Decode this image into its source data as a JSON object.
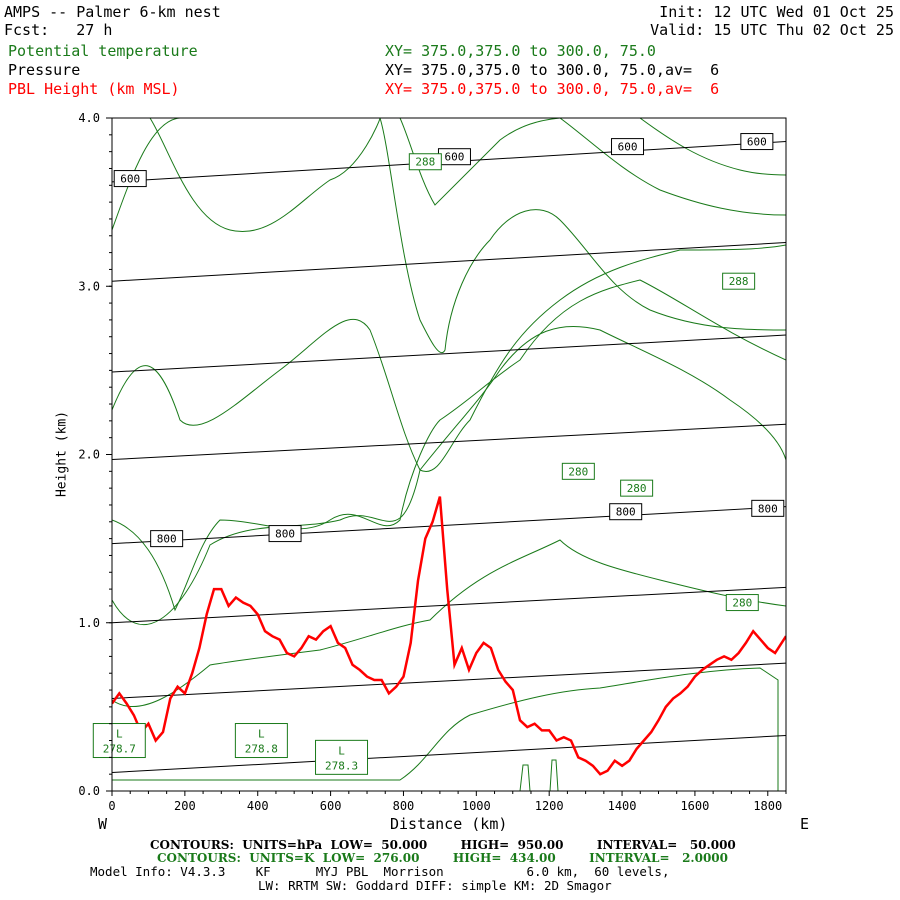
{
  "header": {
    "title": "AMPS -- Palmer 6-km nest",
    "fcst": "Fcst:   27 h",
    "init": "Init: 12 UTC Wed 01 Oct 25",
    "valid": "Valid: 15 UTC Thu 02 Oct 25",
    "field1": "Potential temperature",
    "field1_xy": "XY= 375.0,375.0 to 300.0, 75.0",
    "field2": "Pressure",
    "field2_xy": "XY= 375.0,375.0 to 300.0, 75.0,av=  6",
    "field3": "PBL Height (km MSL)",
    "field3_xy": "XY= 375.0,375.0 to 300.0, 75.0,av=  6"
  },
  "colors": {
    "theta": "#1a7a1a",
    "pressure": "#000000",
    "pbl": "#ff0000"
  },
  "footer": {
    "line1": "CONTOURS:  UNITS=hPa  LOW=  50.000        HIGH=  950.00        INTERVAL=   50.000",
    "line2": "CONTOURS:  UNITS=K  LOW=  276.00        HIGH=  434.00        INTERVAL=   2.0000",
    "line3": "Model Info: V4.3.3    KF      MYJ PBL  Morrison           6.0 km,  60 levels,",
    "line4": "LW: RRTM SW: Goddard DIFF: simple KM: 2D Smagor"
  },
  "chart_data": {
    "type": "line",
    "title": "PBL Height (km MSL)",
    "xlabel": "Distance (km)",
    "ylabel": "Height (km)",
    "xlim": [
      0,
      1850
    ],
    "ylim": [
      0,
      4.0
    ],
    "x_ticks": [
      0,
      200,
      400,
      600,
      800,
      1000,
      1200,
      1400,
      1600,
      1800
    ],
    "y_ticks": [
      "0.0",
      "1.0",
      "2.0",
      "3.0",
      "4.0"
    ],
    "x_end_labels": {
      "left": "W",
      "right": "E"
    },
    "series": [
      {
        "name": "PBL Height (km MSL)",
        "x": [
          0,
          20,
          40,
          60,
          80,
          100,
          120,
          140,
          160,
          180,
          200,
          220,
          240,
          260,
          280,
          300,
          320,
          340,
          360,
          380,
          400,
          420,
          440,
          460,
          480,
          500,
          520,
          540,
          560,
          580,
          600,
          620,
          640,
          660,
          680,
          700,
          720,
          740,
          760,
          780,
          800,
          820,
          840,
          860,
          880,
          900,
          920,
          940,
          960,
          980,
          1000,
          1020,
          1040,
          1060,
          1080,
          1100,
          1120,
          1140,
          1160,
          1180,
          1200,
          1220,
          1240,
          1260,
          1280,
          1300,
          1320,
          1340,
          1360,
          1380,
          1400,
          1420,
          1440,
          1460,
          1480,
          1500,
          1520,
          1540,
          1560,
          1580,
          1600,
          1620,
          1640,
          1660,
          1680,
          1700,
          1720,
          1740,
          1760,
          1780,
          1800,
          1820,
          1850
        ],
        "y": [
          0.52,
          0.58,
          0.52,
          0.45,
          0.35,
          0.4,
          0.3,
          0.35,
          0.55,
          0.62,
          0.58,
          0.7,
          0.85,
          1.05,
          1.2,
          1.2,
          1.1,
          1.15,
          1.12,
          1.1,
          1.05,
          0.95,
          0.92,
          0.9,
          0.82,
          0.8,
          0.85,
          0.92,
          0.9,
          0.95,
          0.98,
          0.88,
          0.85,
          0.75,
          0.72,
          0.68,
          0.66,
          0.66,
          0.58,
          0.62,
          0.68,
          0.88,
          1.25,
          1.5,
          1.6,
          1.75,
          1.2,
          0.75,
          0.85,
          0.72,
          0.82,
          0.88,
          0.85,
          0.72,
          0.65,
          0.6,
          0.42,
          0.38,
          0.4,
          0.36,
          0.36,
          0.3,
          0.32,
          0.3,
          0.2,
          0.18,
          0.15,
          0.1,
          0.12,
          0.18,
          0.15,
          0.18,
          0.25,
          0.3,
          0.35,
          0.42,
          0.5,
          0.55,
          0.58,
          0.62,
          0.68,
          0.72,
          0.75,
          0.78,
          0.8,
          0.78,
          0.82,
          0.88,
          0.95,
          0.9,
          0.85,
          0.82,
          0.92
        ]
      }
    ],
    "pressure_contours": {
      "units": "hPa",
      "lines": [
        {
          "label": "",
          "y_left": 0.11,
          "y_right": 0.33
        },
        {
          "label": "",
          "y_left": 0.55,
          "y_right": 0.76
        },
        {
          "label": "",
          "y_left": 1.0,
          "y_right": 1.21
        },
        {
          "label": "800",
          "y_left": 1.47,
          "y_right": 1.69
        },
        {
          "label": "",
          "y_left": 1.97,
          "y_right": 2.18
        },
        {
          "label": "",
          "y_left": 2.49,
          "y_right": 2.71
        },
        {
          "label": "",
          "y_left": 3.03,
          "y_right": 3.26
        },
        {
          "label": "600",
          "y_left": 3.62,
          "y_right": 3.86
        }
      ],
      "labels": [
        {
          "text": "800",
          "x": 150,
          "y": 1.5
        },
        {
          "text": "800",
          "x": 475,
          "y": 1.53
        },
        {
          "text": "800",
          "x": 1410,
          "y": 1.66
        },
        {
          "text": "800",
          "x": 1800,
          "y": 1.68
        },
        {
          "text": "600",
          "x": 50,
          "y": 3.64
        },
        {
          "text": "600",
          "x": 940,
          "y": 3.77
        },
        {
          "text": "600",
          "x": 1415,
          "y": 3.83
        },
        {
          "text": "600",
          "x": 1770,
          "y": 3.86
        }
      ]
    },
    "theta_contours": {
      "units": "K",
      "labels": [
        {
          "text": "288",
          "x": 860,
          "y": 3.74
        },
        {
          "text": "288",
          "x": 1720,
          "y": 3.03
        },
        {
          "text": "280",
          "x": 1280,
          "y": 1.9
        },
        {
          "text": "280",
          "x": 1440,
          "y": 1.8
        },
        {
          "text": "280",
          "x": 1730,
          "y": 1.12
        }
      ],
      "lows": [
        {
          "label": "L",
          "value": "278.7",
          "x": 20,
          "y": 0.3
        },
        {
          "label": "L",
          "value": "278.8",
          "x": 410,
          "y": 0.3
        },
        {
          "label": "L",
          "value": "278.3",
          "x": 630,
          "y": 0.2
        }
      ]
    }
  }
}
